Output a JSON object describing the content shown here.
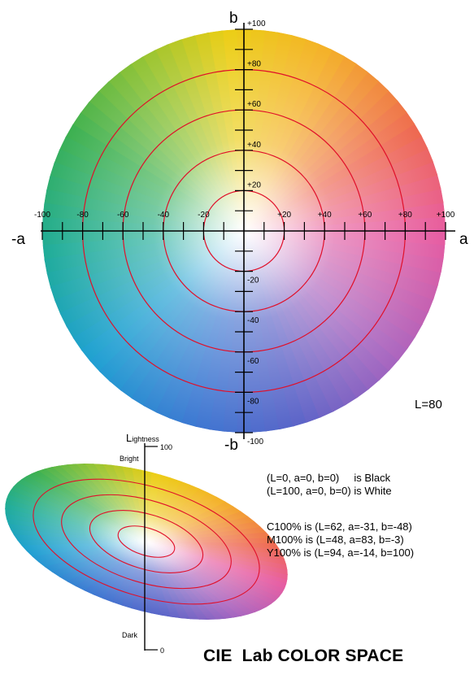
{
  "main_diagram": {
    "axis_labels": {
      "b_pos": "b",
      "b_neg": "-b",
      "a_pos": "a",
      "a_neg": "-a"
    },
    "b_ticks": [
      "+100",
      "+80",
      "+60",
      "+40",
      "+20",
      "-20",
      "-40",
      "-60",
      "-80",
      "-100"
    ],
    "a_ticks": [
      "-100",
      "-80",
      "-60",
      "-40",
      "-20",
      "+20",
      "+40",
      "+60",
      "+80",
      "+100"
    ],
    "lightness_label": "L=80",
    "ring_color": "#e0102a"
  },
  "small_diagram": {
    "axis_title_L": "L",
    "axis_title_rest": "ightness",
    "top_value": "100",
    "bottom_value": "0",
    "bright_label": "Bright",
    "dark_label": "Dark"
  },
  "info": {
    "black": "(L=0, a=0, b=0)     is Black",
    "white": "(L=100, a=0, b=0) is White",
    "cyan": "C100% is (L=62, a=-31, b=-48)",
    "magenta": "M100% is (L=48, a=83, b=-3)",
    "yellow": "Y100% is (L=94, a=-14, b=100)"
  },
  "title": "CIE  Lab COLOR SPACE"
}
